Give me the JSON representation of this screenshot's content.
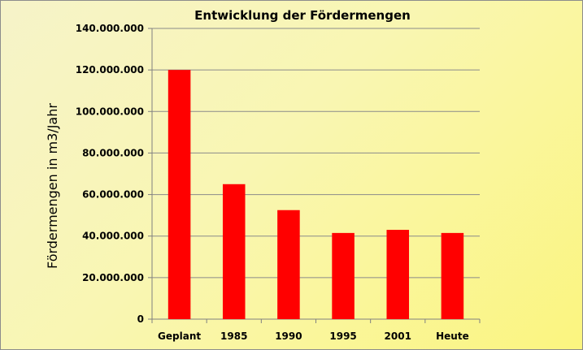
{
  "chart_data": {
    "type": "bar",
    "title": "Entwicklung der Fördermengen",
    "xlabel": "",
    "ylabel": "Fördermengen in m3/Jahr",
    "categories": [
      "Geplant",
      "1985",
      "1990",
      "1995",
      "2001",
      "Heute"
    ],
    "values": [
      120000000,
      65000000,
      52500000,
      41500000,
      43000000,
      41500000
    ],
    "ylim": [
      0,
      140000000
    ],
    "yticks": [
      0,
      20000000,
      40000000,
      60000000,
      80000000,
      100000000,
      120000000,
      140000000
    ],
    "ytick_labels": [
      "0",
      "20.000.000",
      "40.000.000",
      "60.000.000",
      "80.000.000",
      "100.000.000",
      "120.000.000",
      "140.000.000"
    ],
    "grid": true,
    "legend": "none",
    "bar_color": "#ff0000",
    "background_colors": [
      "#f6f3c9",
      "#fbf57f"
    ]
  }
}
